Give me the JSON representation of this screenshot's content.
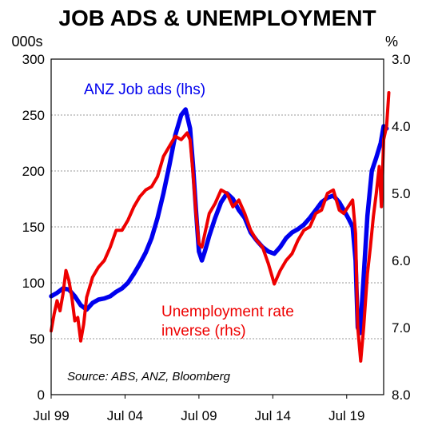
{
  "chart_data": {
    "type": "line",
    "title": "JOB ADS & UNEMPLOYMENT",
    "left_axis_unit": "000s",
    "right_axis_unit": "%",
    "x_ticks": [
      "Jul 99",
      "Jul 04",
      "Jul 09",
      "Jul 14",
      "Jul 19"
    ],
    "x_tick_years": [
      1999.5,
      2004.5,
      2009.5,
      2014.5,
      2019.5
    ],
    "xlim": [
      1999.5,
      2022.0
    ],
    "left_ylim": [
      0,
      300
    ],
    "left_ticks": [
      "0",
      "50",
      "100",
      "150",
      "200",
      "250",
      "300"
    ],
    "right_ylim": [
      8.0,
      3.0
    ],
    "right_ticks": [
      "3.0",
      "4.0",
      "5.0",
      "6.0",
      "7.0",
      "8.0"
    ],
    "right_axis_inverted": true,
    "grid": true,
    "annotation": "Source: ABS, ANZ, Bloomberg",
    "series": [
      {
        "name": "ANZ Job ads (lhs)",
        "axis": "left",
        "color": "#0000ee",
        "points": [
          [
            1999.5,
            88
          ],
          [
            1999.9,
            91
          ],
          [
            2000.3,
            95
          ],
          [
            2000.7,
            94
          ],
          [
            2001.1,
            88
          ],
          [
            2001.5,
            80
          ],
          [
            2001.9,
            76
          ],
          [
            2002.3,
            82
          ],
          [
            2002.7,
            85
          ],
          [
            2003.1,
            86
          ],
          [
            2003.5,
            88
          ],
          [
            2003.9,
            92
          ],
          [
            2004.3,
            95
          ],
          [
            2004.7,
            100
          ],
          [
            2005.1,
            108
          ],
          [
            2005.5,
            117
          ],
          [
            2005.9,
            127
          ],
          [
            2006.3,
            140
          ],
          [
            2006.7,
            158
          ],
          [
            2007.1,
            180
          ],
          [
            2007.5,
            205
          ],
          [
            2007.9,
            232
          ],
          [
            2008.3,
            250
          ],
          [
            2008.6,
            255
          ],
          [
            2008.9,
            238
          ],
          [
            2009.1,
            205
          ],
          [
            2009.3,
            165
          ],
          [
            2009.5,
            128
          ],
          [
            2009.7,
            120
          ],
          [
            2009.9,
            128
          ],
          [
            2010.2,
            142
          ],
          [
            2010.6,
            158
          ],
          [
            2011.0,
            172
          ],
          [
            2011.4,
            180
          ],
          [
            2011.8,
            175
          ],
          [
            2012.2,
            165
          ],
          [
            2012.6,
            158
          ],
          [
            2013.0,
            145
          ],
          [
            2013.4,
            138
          ],
          [
            2013.8,
            132
          ],
          [
            2014.2,
            128
          ],
          [
            2014.6,
            126
          ],
          [
            2015.0,
            132
          ],
          [
            2015.4,
            140
          ],
          [
            2015.8,
            145
          ],
          [
            2016.2,
            148
          ],
          [
            2016.6,
            152
          ],
          [
            2017.0,
            158
          ],
          [
            2017.4,
            165
          ],
          [
            2017.8,
            172
          ],
          [
            2018.2,
            176
          ],
          [
            2018.6,
            178
          ],
          [
            2019.0,
            172
          ],
          [
            2019.3,
            165
          ],
          [
            2019.6,
            158
          ],
          [
            2019.9,
            150
          ],
          [
            2020.1,
            120
          ],
          [
            2020.25,
            60
          ],
          [
            2020.4,
            55
          ],
          [
            2020.6,
            95
          ],
          [
            2020.9,
            160
          ],
          [
            2021.2,
            200
          ],
          [
            2021.5,
            212
          ],
          [
            2021.8,
            225
          ],
          [
            2022.0,
            240
          ],
          [
            2022.2,
            238
          ]
        ]
      },
      {
        "name": "Unemployment rate inverse (rhs)",
        "axis": "right",
        "color": "#ee0000",
        "points": [
          [
            1999.5,
            7.05
          ],
          [
            1999.7,
            6.8
          ],
          [
            1999.9,
            6.6
          ],
          [
            2000.1,
            6.75
          ],
          [
            2000.3,
            6.5
          ],
          [
            2000.5,
            6.15
          ],
          [
            2000.7,
            6.3
          ],
          [
            2000.9,
            6.55
          ],
          [
            2001.1,
            6.9
          ],
          [
            2001.3,
            6.85
          ],
          [
            2001.5,
            7.2
          ],
          [
            2001.7,
            6.95
          ],
          [
            2001.9,
            6.55
          ],
          [
            2002.3,
            6.25
          ],
          [
            2002.7,
            6.1
          ],
          [
            2003.1,
            6.0
          ],
          [
            2003.5,
            5.8
          ],
          [
            2003.9,
            5.55
          ],
          [
            2004.3,
            5.55
          ],
          [
            2004.7,
            5.4
          ],
          [
            2005.1,
            5.2
          ],
          [
            2005.5,
            5.05
          ],
          [
            2005.9,
            4.95
          ],
          [
            2006.3,
            4.9
          ],
          [
            2006.7,
            4.75
          ],
          [
            2007.1,
            4.45
          ],
          [
            2007.5,
            4.3
          ],
          [
            2007.9,
            4.15
          ],
          [
            2008.3,
            4.2
          ],
          [
            2008.7,
            4.1
          ],
          [
            2008.9,
            4.2
          ],
          [
            2009.1,
            4.7
          ],
          [
            2009.3,
            5.3
          ],
          [
            2009.5,
            5.75
          ],
          [
            2009.7,
            5.8
          ],
          [
            2009.9,
            5.6
          ],
          [
            2010.2,
            5.3
          ],
          [
            2010.6,
            5.15
          ],
          [
            2011.0,
            4.95
          ],
          [
            2011.4,
            5.0
          ],
          [
            2011.8,
            5.2
          ],
          [
            2012.2,
            5.1
          ],
          [
            2012.6,
            5.3
          ],
          [
            2013.0,
            5.55
          ],
          [
            2013.4,
            5.7
          ],
          [
            2013.8,
            5.8
          ],
          [
            2014.2,
            6.05
          ],
          [
            2014.6,
            6.35
          ],
          [
            2015.0,
            6.15
          ],
          [
            2015.4,
            6.0
          ],
          [
            2015.8,
            5.9
          ],
          [
            2016.2,
            5.7
          ],
          [
            2016.6,
            5.55
          ],
          [
            2017.0,
            5.5
          ],
          [
            2017.4,
            5.3
          ],
          [
            2017.8,
            5.25
          ],
          [
            2018.2,
            5.0
          ],
          [
            2018.6,
            4.95
          ],
          [
            2019.0,
            5.25
          ],
          [
            2019.3,
            5.3
          ],
          [
            2019.6,
            5.2
          ],
          [
            2019.9,
            5.1
          ],
          [
            2020.1,
            5.6
          ],
          [
            2020.25,
            7.0
          ],
          [
            2020.45,
            7.5
          ],
          [
            2020.65,
            7.0
          ],
          [
            2020.9,
            6.2
          ],
          [
            2021.1,
            5.8
          ],
          [
            2021.3,
            5.35
          ],
          [
            2021.5,
            5.0
          ],
          [
            2021.7,
            4.6
          ],
          [
            2021.85,
            5.2
          ],
          [
            2022.0,
            4.2
          ],
          [
            2022.2,
            4.0
          ],
          [
            2022.35,
            3.5
          ]
        ]
      }
    ]
  }
}
